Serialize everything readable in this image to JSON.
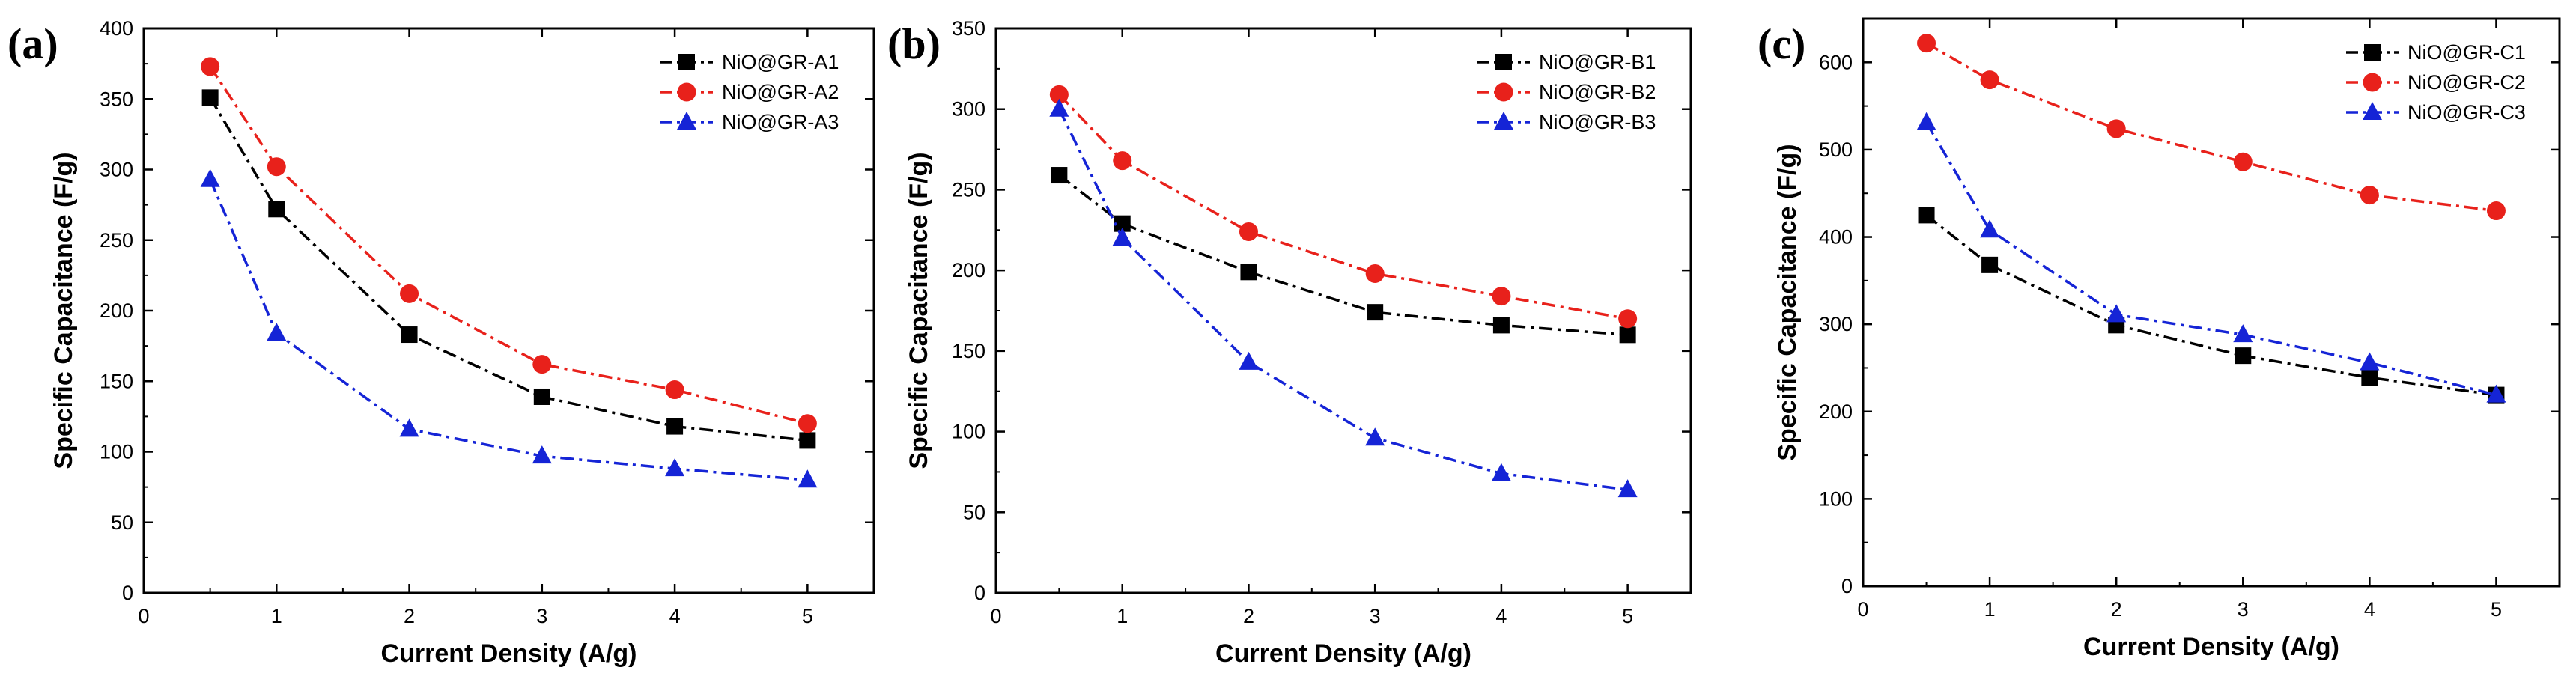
{
  "chart_data": [
    {
      "type": "line",
      "panel_label": "(a)",
      "xlabel": "Current Density (A/g)",
      "ylabel": "Specific Capacitance (F/g)",
      "xlim": [
        0,
        5.5
      ],
      "ylim": [
        0,
        400
      ],
      "xticks": [
        0,
        1,
        2,
        3,
        4,
        5
      ],
      "yticks": [
        0,
        50,
        100,
        150,
        200,
        250,
        300,
        350,
        400
      ],
      "legend_position": "top-right",
      "x": [
        0.5,
        1,
        2,
        3,
        4,
        5
      ],
      "series": [
        {
          "name": "NiO@GR-A1",
          "color": "#000000",
          "marker": "square",
          "values": [
            351,
            272,
            183,
            139,
            118,
            108
          ]
        },
        {
          "name": "NiO@GR-A2",
          "color": "#e8211b",
          "marker": "circle",
          "values": [
            373,
            302,
            212,
            162,
            144,
            120
          ]
        },
        {
          "name": "NiO@GR-A3",
          "color": "#1524d6",
          "marker": "triangle",
          "values": [
            293,
            184,
            116,
            97,
            88,
            80
          ]
        }
      ]
    },
    {
      "type": "line",
      "panel_label": "(b)",
      "xlabel": "Current Density (A/g)",
      "ylabel": "Specific Capacitance (F/g)",
      "xlim": [
        0,
        5.5
      ],
      "ylim": [
        0,
        350
      ],
      "xticks": [
        0,
        1,
        2,
        3,
        4,
        5
      ],
      "yticks": [
        0,
        50,
        100,
        150,
        200,
        250,
        300,
        350
      ],
      "legend_position": "top-right",
      "x": [
        0.5,
        1,
        2,
        3,
        4,
        5
      ],
      "series": [
        {
          "name": "NiO@GR-B1",
          "color": "#000000",
          "marker": "square",
          "values": [
            259,
            229,
            199,
            174,
            166,
            160
          ]
        },
        {
          "name": "NiO@GR-B2",
          "color": "#e8211b",
          "marker": "circle",
          "values": [
            309,
            268,
            224,
            198,
            184,
            170
          ]
        },
        {
          "name": "NiO@GR-B3",
          "color": "#1524d6",
          "marker": "triangle",
          "values": [
            300,
            220,
            143,
            96,
            74,
            64
          ]
        }
      ]
    },
    {
      "type": "line",
      "panel_label": "(c)",
      "xlabel": "Current Density (A/g)",
      "ylabel": "Specific Capacitance (F/g)",
      "xlim": [
        0,
        5.5
      ],
      "ylim": [
        0,
        650
      ],
      "xticks": [
        0,
        1,
        2,
        3,
        4,
        5
      ],
      "yticks": [
        0,
        100,
        200,
        300,
        400,
        500,
        600
      ],
      "legend_position": "top-right",
      "x": [
        0.5,
        1,
        2,
        3,
        4,
        5
      ],
      "series": [
        {
          "name": "NiO@GR-C1",
          "color": "#000000",
          "marker": "square",
          "values": [
            425,
            368,
            299,
            264,
            239,
            219
          ]
        },
        {
          "name": "NiO@GR-C2",
          "color": "#e8211b",
          "marker": "circle",
          "values": [
            622,
            580,
            524,
            486,
            448,
            430
          ]
        },
        {
          "name": "NiO@GR-C3",
          "color": "#1524d6",
          "marker": "triangle",
          "values": [
            531,
            408,
            311,
            288,
            256,
            219
          ]
        }
      ]
    }
  ]
}
